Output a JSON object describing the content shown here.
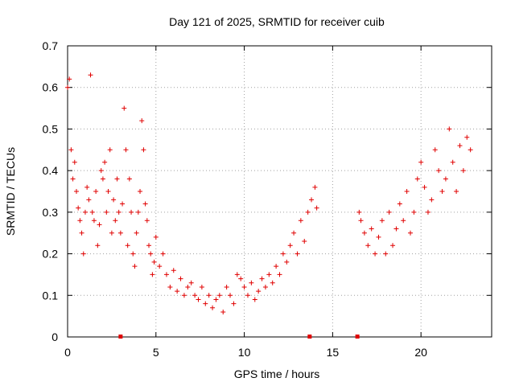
{
  "chart_data": {
    "type": "scatter",
    "title": "Day 121 of 2025, SRMTID for receiver cuib",
    "xlabel": "GPS time / hours",
    "ylabel": "SRMTID / TECUs",
    "xlim": [
      0,
      24
    ],
    "ylim": [
      0,
      0.7
    ],
    "xticks": [
      0,
      5,
      10,
      15,
      20
    ],
    "yticks": [
      0,
      0.1,
      0.2,
      0.3,
      0.4,
      0.5,
      0.6,
      0.7
    ],
    "xtick_labels": [
      "0",
      "5",
      "10",
      "15",
      "20"
    ],
    "ytick_labels": [
      "0",
      "0.1",
      "0.2",
      "0.3",
      "0.4",
      "0.5",
      "0.6",
      "0.7"
    ],
    "grid": true,
    "series": [
      {
        "name": "SRMTID",
        "marker": "plus",
        "color": "#e00000",
        "envelope_description": "dense scatter of points; sampled typical values below",
        "x": [
          0.0,
          0.1,
          0.2,
          0.3,
          0.4,
          0.5,
          0.6,
          0.7,
          0.8,
          0.9,
          1.0,
          1.1,
          1.2,
          1.3,
          1.4,
          1.5,
          1.6,
          1.7,
          1.8,
          1.9,
          2.0,
          2.1,
          2.2,
          2.3,
          2.4,
          2.5,
          2.6,
          2.7,
          2.8,
          2.9,
          3.0,
          3.1,
          3.2,
          3.3,
          3.4,
          3.5,
          3.6,
          3.7,
          3.8,
          3.9,
          4.0,
          4.1,
          4.2,
          4.3,
          4.4,
          4.5,
          4.6,
          4.7,
          4.8,
          4.9,
          5.0,
          5.2,
          5.4,
          5.6,
          5.8,
          6.0,
          6.2,
          6.4,
          6.6,
          6.8,
          7.0,
          7.2,
          7.4,
          7.6,
          7.8,
          8.0,
          8.2,
          8.4,
          8.6,
          8.8,
          9.0,
          9.2,
          9.4,
          9.6,
          9.8,
          10.0,
          10.2,
          10.4,
          10.6,
          10.8,
          11.0,
          11.2,
          11.4,
          11.6,
          11.8,
          12.0,
          12.2,
          12.4,
          12.6,
          12.8,
          13.0,
          13.2,
          13.4,
          13.6,
          13.8,
          14.0,
          14.1,
          16.5,
          16.6,
          16.8,
          17.0,
          17.2,
          17.4,
          17.6,
          17.8,
          18.0,
          18.2,
          18.4,
          18.6,
          18.8,
          19.0,
          19.2,
          19.4,
          19.6,
          19.8,
          20.0,
          20.2,
          20.4,
          20.6,
          20.8,
          21.0,
          21.2,
          21.4,
          21.6,
          21.8,
          22.0,
          22.2,
          22.4,
          22.6,
          22.8
        ],
        "y": [
          0.6,
          0.62,
          0.45,
          0.38,
          0.42,
          0.35,
          0.31,
          0.28,
          0.25,
          0.2,
          0.3,
          0.36,
          0.33,
          0.63,
          0.3,
          0.28,
          0.35,
          0.22,
          0.27,
          0.4,
          0.38,
          0.42,
          0.3,
          0.35,
          0.45,
          0.25,
          0.33,
          0.28,
          0.38,
          0.3,
          0.25,
          0.32,
          0.55,
          0.45,
          0.22,
          0.38,
          0.3,
          0.2,
          0.17,
          0.25,
          0.3,
          0.35,
          0.52,
          0.45,
          0.32,
          0.28,
          0.22,
          0.2,
          0.15,
          0.18,
          0.24,
          0.17,
          0.2,
          0.15,
          0.12,
          0.16,
          0.11,
          0.14,
          0.1,
          0.12,
          0.13,
          0.1,
          0.09,
          0.12,
          0.08,
          0.1,
          0.07,
          0.09,
          0.1,
          0.06,
          0.12,
          0.1,
          0.08,
          0.15,
          0.14,
          0.12,
          0.1,
          0.13,
          0.09,
          0.11,
          0.14,
          0.12,
          0.15,
          0.13,
          0.17,
          0.15,
          0.2,
          0.18,
          0.22,
          0.25,
          0.2,
          0.28,
          0.23,
          0.3,
          0.33,
          0.36,
          0.31,
          0.3,
          0.28,
          0.25,
          0.22,
          0.26,
          0.2,
          0.24,
          0.28,
          0.2,
          0.3,
          0.22,
          0.26,
          0.32,
          0.28,
          0.35,
          0.25,
          0.3,
          0.38,
          0.42,
          0.36,
          0.3,
          0.33,
          0.45,
          0.4,
          0.35,
          0.38,
          0.5,
          0.42,
          0.35,
          0.46,
          0.4,
          0.48,
          0.45
        ]
      }
    ],
    "gap_markers_x": [
      3.0,
      13.7,
      16.4
    ]
  }
}
